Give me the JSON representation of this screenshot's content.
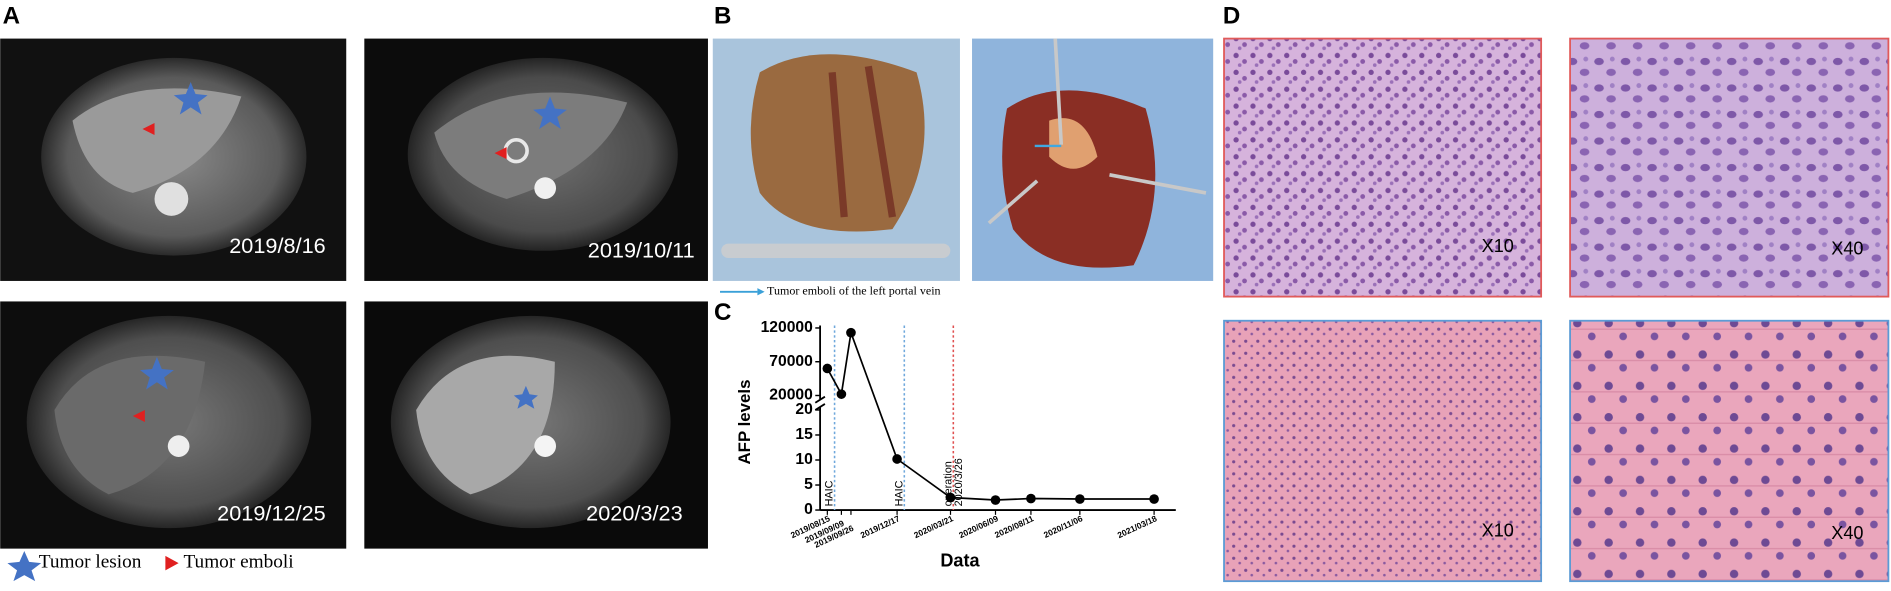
{
  "panel_labels": [
    "A",
    "B",
    "C",
    "D"
  ],
  "panel_a": {
    "images": [
      {
        "date": "2019/8/16"
      },
      {
        "date": "2019/10/11"
      },
      {
        "date": "2019/12/25"
      },
      {
        "date": "2020/3/23"
      }
    ],
    "legend": [
      "Tumor lesion",
      "Tumor emboli"
    ]
  },
  "panel_b": {
    "caption": "Tumor emboli of the left portal vein"
  },
  "chart_data": {
    "type": "line",
    "x_label": "Data",
    "y_label": "AFP levels",
    "color": "#000000",
    "x": [
      "2019/08/15",
      "2019/09/09",
      "2019/09/26",
      "2019/12/17",
      "2020/03/21",
      "2020/06/09",
      "2020/08/11",
      "2020/11/06",
      "2021/03/18"
    ],
    "values": [
      60000,
      22000,
      113000,
      10.2,
      2.5,
      2,
      2.3,
      2.2,
      2.2
    ],
    "axis_segments": [
      {
        "ylim": [
          0,
          20
        ],
        "yticks": [
          0,
          5,
          10,
          15,
          20
        ]
      },
      {
        "ylim": [
          20000,
          120000
        ],
        "yticks": [
          20000,
          70000,
          120000
        ]
      }
    ],
    "markers": [
      {
        "label": "HAIC",
        "color": "#6fa8dc",
        "after": 0
      },
      {
        "label": "HAIC",
        "color": "#6fa8dc",
        "after": 3
      },
      {
        "label": "operation",
        "date": "2020/3/26",
        "color": "#e05050"
      }
    ]
  },
  "panel_d": {
    "images": [
      {
        "label": "X10"
      },
      {
        "label": "X40"
      },
      {
        "label": "X10"
      },
      {
        "label": "X40"
      }
    ]
  }
}
